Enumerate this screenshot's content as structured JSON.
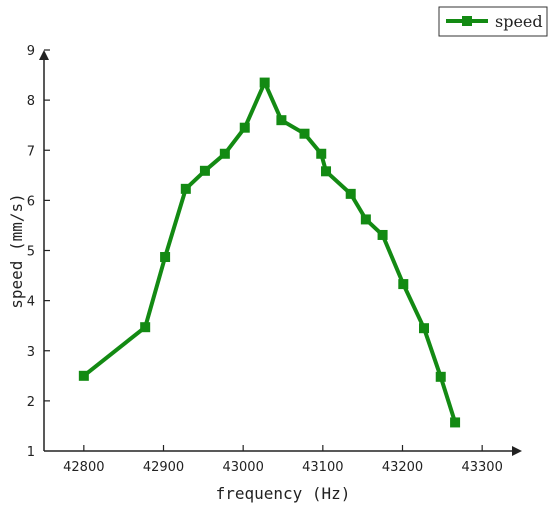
{
  "chart_data": {
    "type": "line",
    "xlabel": "frequency (Hz)",
    "ylabel": "speed (mm/s)",
    "xlim": [
      42750,
      43350
    ],
    "ylim": [
      1,
      9
    ],
    "xticks": [
      42800,
      42900,
      43000,
      43100,
      43200,
      43300
    ],
    "yticks": [
      1,
      2,
      3,
      4,
      5,
      6,
      7,
      8,
      9
    ],
    "grid": false,
    "legend_position": "top-right",
    "color": "#138a13",
    "series": [
      {
        "name": "speed",
        "x": [
          42800,
          42877,
          42902,
          42928,
          42952,
          42977,
          43002,
          43027,
          43048,
          43077,
          43098,
          43104,
          43135,
          43154,
          43175,
          43201,
          43227,
          43248,
          43266
        ],
        "y": [
          2.5,
          3.47,
          4.87,
          6.23,
          6.59,
          6.93,
          7.45,
          8.35,
          7.6,
          7.33,
          6.93,
          6.58,
          6.13,
          5.62,
          5.31,
          4.33,
          3.45,
          2.48,
          1.57
        ]
      }
    ]
  }
}
